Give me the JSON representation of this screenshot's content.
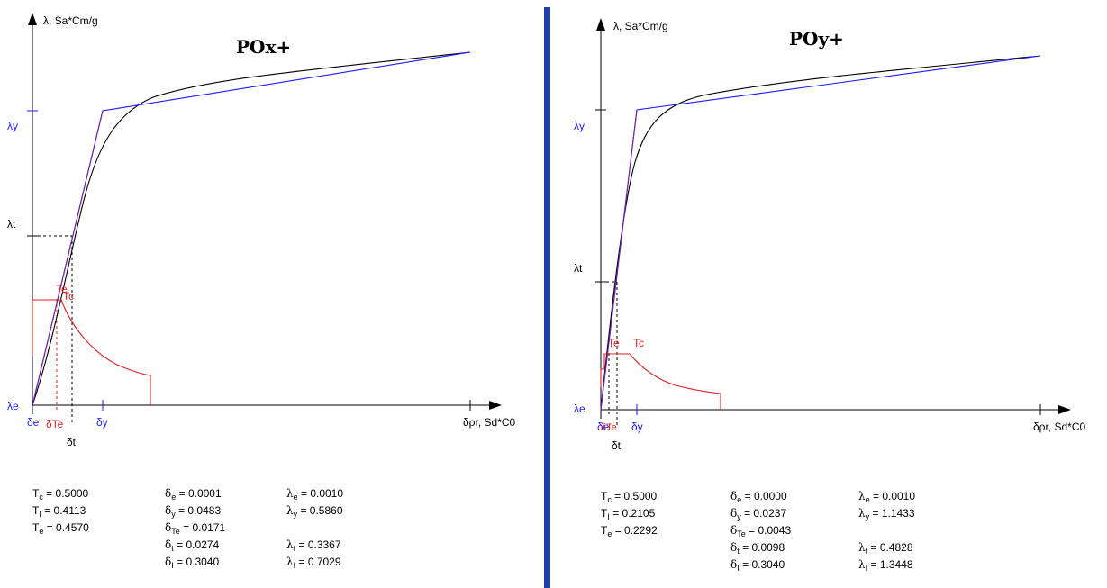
{
  "chart_data": [
    {
      "type": "line",
      "title": "POx+",
      "ylabel": "λ, Sa*Cm/g",
      "xlabel": "δρr, Sd*C0",
      "y_axis_labels": {
        "lambda_y": "λy",
        "lambda_t": "λt",
        "lambda_e": "λe"
      },
      "x_axis_labels": {
        "delta_e": "δe",
        "delta_Te": "δTe",
        "delta_t": "δt",
        "delta_y": "δy"
      },
      "spectrum_labels": [
        "Te",
        "Tc"
      ],
      "grid": false,
      "colors": {
        "capacity_curve": "#000000",
        "bilinear": "#1a1aff",
        "spectrum": "#e02020",
        "elastic": "#7a1fa0",
        "markers": "#1a1aff"
      },
      "stats": {
        "Tc": "0.5000",
        "TI": "0.4113",
        "Te": "0.4570",
        "de": "0.0001",
        "dy": "0.0483",
        "dTe": "0.0171",
        "dt": "0.0274",
        "dI": "0.3040",
        "le": "0.0010",
        "ly": "0.5860",
        "lt": "0.3367",
        "lI": "0.7029"
      }
    },
    {
      "type": "line",
      "title": "POy+",
      "ylabel": "λ, Sa*Cm/g",
      "xlabel": "δρr, Sd*C0",
      "y_axis_labels": {
        "lambda_y": "λy",
        "lambda_t": "λt",
        "lambda_e": "λe"
      },
      "x_axis_labels": {
        "delta_e": "δe",
        "delta_Te": "δTe",
        "delta_t": "δt",
        "delta_y": "δy"
      },
      "spectrum_labels": [
        "Te",
        "Tc"
      ],
      "grid": false,
      "colors": {
        "capacity_curve": "#000000",
        "bilinear": "#1a1aff",
        "spectrum": "#e02020",
        "elastic": "#7a1fa0",
        "markers": "#1a1aff"
      },
      "stats": {
        "Tc": "0.5000",
        "TI": "0.2105",
        "Te": "0.2292",
        "de": "0.0000",
        "dy": "0.0237",
        "dTe": "0.0043",
        "dt": "0.0098",
        "dI": "0.3040",
        "le": "0.0010",
        "ly": "1.1433",
        "lt": "0.4828",
        "lI": "1.3448"
      }
    }
  ]
}
